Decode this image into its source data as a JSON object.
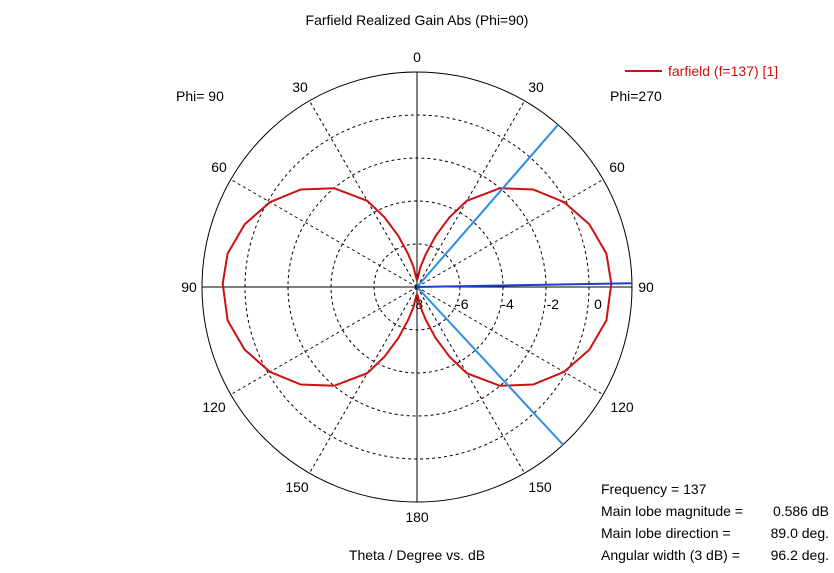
{
  "chart_data": {
    "type": "polar",
    "title": "Farfield Realized Gain Abs (Phi=90)",
    "xlabel": "Theta / Degree vs. dB",
    "left_side_label": "Phi= 90",
    "right_side_label": "Phi=270",
    "angle_ticks": [
      "0",
      "30",
      "30",
      "60",
      "60",
      "90",
      "90",
      "120",
      "120",
      "150",
      "150",
      "180"
    ],
    "radial_ticks": [
      "-8",
      "-6",
      "-4",
      "-2",
      "0"
    ],
    "radial_range_db": [
      -8,
      1.5
    ],
    "series": [
      {
        "name": "farfield (f=137) [1]",
        "color": "#cc1111",
        "pattern": "sin(theta)^2 dipole (symmetric, both sides)",
        "theta_deg": [
          0,
          5,
          10,
          15,
          20,
          25,
          30,
          40,
          50,
          60,
          70,
          80,
          89,
          100,
          110,
          120,
          130,
          140,
          150,
          155,
          160,
          165,
          170,
          175,
          180
        ],
        "gain_db": [
          -7.7,
          -7.6,
          -7.1,
          -6.5,
          -5.6,
          -4.6,
          -3.6,
          -2.3,
          -1.3,
          -0.5,
          0.1,
          0.5,
          0.586,
          0.5,
          0.1,
          -0.5,
          -1.3,
          -2.3,
          -3.6,
          -4.6,
          -5.6,
          -6.5,
          -7.1,
          -7.6,
          -7.7
        ]
      }
    ],
    "markers": {
      "main_lobe_direction_deg": 89.0,
      "beamwidth_edges_deg": [
        41.0,
        137.2
      ],
      "main_lobe_color": "#1a3fd0",
      "beamwidth_color": "#2a8ee8"
    }
  },
  "info": {
    "frequency_label": "Frequency = 137",
    "magnitude_label": "Main lobe magnitude =",
    "magnitude_value": "0.586 dB",
    "direction_label": "Main lobe direction =",
    "direction_value": "89.0 deg.",
    "width_label": "Angular width (3 dB) =",
    "width_value": "96.2 deg."
  }
}
